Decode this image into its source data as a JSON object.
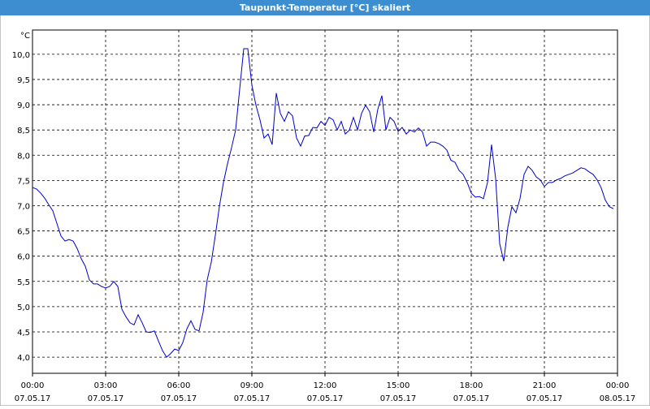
{
  "chart_data": {
    "type": "line",
    "title": "Taupunkt-Temperatur [°C] skaliert",
    "y_unit": "°C",
    "xlim": [
      0,
      1440
    ],
    "ylim": [
      3.68,
      10.48
    ],
    "xticks": [
      {
        "value": 0,
        "label": "00:00"
      },
      {
        "value": 180,
        "label": "03:00"
      },
      {
        "value": 360,
        "label": "06:00"
      },
      {
        "value": 540,
        "label": "09:00"
      },
      {
        "value": 720,
        "label": "12:00"
      },
      {
        "value": 900,
        "label": "15:00"
      },
      {
        "value": 1080,
        "label": "18:00"
      },
      {
        "value": 1260,
        "label": "21:00"
      },
      {
        "value": 1440,
        "label": "00:00"
      }
    ],
    "xtick_dates": [
      "07.05.17",
      "07.05.17",
      "07.05.17",
      "07.05.17",
      "07.05.17",
      "07.05.17",
      "07.05.17",
      "07.05.17",
      "08.05.17"
    ],
    "yticks": [
      {
        "value": 4.0,
        "label": "4,0"
      },
      {
        "value": 4.5,
        "label": "4,5"
      },
      {
        "value": 5.0,
        "label": "5,0"
      },
      {
        "value": 5.5,
        "label": "5,5"
      },
      {
        "value": 6.0,
        "label": "6,0"
      },
      {
        "value": 6.5,
        "label": "6,5"
      },
      {
        "value": 7.0,
        "label": "7,0"
      },
      {
        "value": 7.5,
        "label": "7,5"
      },
      {
        "value": 8.0,
        "label": "8,0"
      },
      {
        "value": 8.5,
        "label": "8,5"
      },
      {
        "value": 9.0,
        "label": "9,0"
      },
      {
        "value": 9.5,
        "label": "9,5"
      },
      {
        "value": 10.0,
        "label": "10,0"
      }
    ],
    "grid": true,
    "x": [
      0,
      10,
      20,
      30,
      40,
      50,
      60,
      70,
      80,
      90,
      100,
      110,
      120,
      130,
      140,
      150,
      160,
      170,
      180,
      190,
      200,
      210,
      220,
      230,
      240,
      250,
      260,
      270,
      280,
      290,
      300,
      310,
      320,
      330,
      340,
      350,
      360,
      370,
      380,
      390,
      400,
      410,
      420,
      430,
      440,
      450,
      460,
      470,
      480,
      490,
      500,
      510,
      520,
      530,
      540,
      550,
      560,
      570,
      580,
      590,
      600,
      610,
      620,
      630,
      640,
      650,
      660,
      670,
      680,
      690,
      700,
      710,
      720,
      730,
      740,
      750,
      760,
      770,
      780,
      790,
      800,
      810,
      820,
      830,
      840,
      850,
      860,
      870,
      880,
      890,
      900,
      910,
      920,
      930,
      940,
      950,
      960,
      970,
      980,
      990,
      1000,
      1010,
      1020,
      1030,
      1040,
      1050,
      1060,
      1070,
      1080,
      1090,
      1100,
      1110,
      1120,
      1130,
      1140,
      1150,
      1160,
      1170,
      1180,
      1190,
      1200,
      1210,
      1220,
      1230,
      1240,
      1250,
      1260,
      1270,
      1280,
      1290,
      1300,
      1310,
      1320,
      1330,
      1340,
      1350,
      1360,
      1370,
      1380,
      1390,
      1400,
      1410,
      1420,
      1430
    ],
    "series": [
      {
        "color": "#0000cc",
        "values": [
          7.36,
          7.33,
          7.25,
          7.15,
          7.02,
          6.9,
          6.65,
          6.4,
          6.3,
          6.33,
          6.3,
          6.15,
          5.95,
          5.8,
          5.53,
          5.45,
          5.45,
          5.4,
          5.37,
          5.4,
          5.5,
          5.4,
          4.95,
          4.8,
          4.68,
          4.64,
          4.84,
          4.68,
          4.5,
          4.49,
          4.52,
          4.32,
          4.13,
          4.0,
          4.07,
          4.16,
          4.13,
          4.29,
          4.56,
          4.72,
          4.55,
          4.52,
          4.89,
          5.53,
          5.88,
          6.41,
          6.98,
          7.46,
          7.83,
          8.15,
          8.5,
          9.31,
          10.11,
          10.11,
          9.39,
          8.99,
          8.7,
          8.34,
          8.42,
          8.21,
          9.23,
          8.83,
          8.67,
          8.86,
          8.78,
          8.34,
          8.18,
          8.38,
          8.39,
          8.55,
          8.54,
          8.67,
          8.59,
          8.75,
          8.7,
          8.5,
          8.67,
          8.42,
          8.5,
          8.75,
          8.5,
          8.83,
          8.99,
          8.86,
          8.46,
          8.91,
          9.18,
          8.5,
          8.75,
          8.67,
          8.47,
          8.55,
          8.42,
          8.5,
          8.46,
          8.54,
          8.46,
          8.18,
          8.26,
          8.26,
          8.23,
          8.18,
          8.1,
          7.9,
          7.86,
          7.7,
          7.62,
          7.46,
          7.25,
          7.17,
          7.18,
          7.14,
          7.46,
          8.21,
          7.54,
          6.25,
          5.9,
          6.57,
          6.98,
          6.86,
          7.14,
          7.62,
          7.78,
          7.7,
          7.57,
          7.51,
          7.38,
          7.46,
          7.46,
          7.51,
          7.54,
          7.59,
          7.62,
          7.65,
          7.7,
          7.75,
          7.73,
          7.67,
          7.62,
          7.51,
          7.35,
          7.11,
          6.98,
          6.94
        ]
      }
    ]
  }
}
